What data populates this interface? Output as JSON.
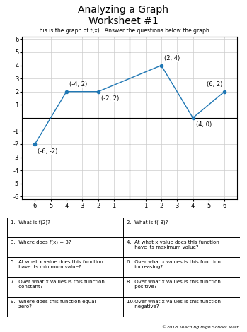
{
  "chart_data": {
    "type": "line",
    "title": "Analyzing a Graph\nWorksheet #1",
    "subtitle": "This is the graph of f(x).  Answer the questions below the graph.",
    "x": [
      -6,
      -4,
      -2,
      2,
      4,
      6
    ],
    "values": [
      -2,
      2,
      2,
      4,
      0,
      2
    ],
    "marker": "o",
    "xlim": [
      -6.8,
      6.8
    ],
    "ylim": [
      -6.2,
      6.2
    ],
    "xticks": [
      -6,
      -5,
      -4,
      -3,
      -2,
      -1,
      1,
      2,
      3,
      4,
      5,
      6
    ],
    "yticks": [
      -6,
      -5,
      -4,
      -3,
      -2,
      -1,
      1,
      2,
      3,
      4,
      5,
      6
    ],
    "grid": true,
    "annotations": [
      {
        "text": "(-6, -2)",
        "x": -6,
        "y": -2
      },
      {
        "text": "(-4, 2)",
        "x": -4,
        "y": 2
      },
      {
        "text": "(-2, 2)",
        "x": -2,
        "y": 2
      },
      {
        "text": "(2, 4)",
        "x": 2,
        "y": 4
      },
      {
        "text": "(4, 0)",
        "x": 4,
        "y": 0
      },
      {
        "text": "(6, 2)",
        "x": 6,
        "y": 2
      }
    ],
    "table": [
      [
        "1.  What is f(2)?",
        "2.  What is f(-8)?"
      ],
      [
        "3.  Where does f(x) = 3?",
        "4.  At what x value does this function\n     have its maximum value?"
      ],
      [
        "5.  At what x value does this function\n     have its minimum value?",
        "6.  Over what x values is this function\n     increasing?"
      ],
      [
        "7.  Over what x values is this function\n     constant?",
        "8.  Over what x values is this function\n     positive?"
      ],
      [
        "9.  Where does this function equal\n     zero?",
        "10.Over what x-values is this function\n     negative?"
      ]
    ],
    "footnote": "©2018 Teaching High School Math"
  }
}
